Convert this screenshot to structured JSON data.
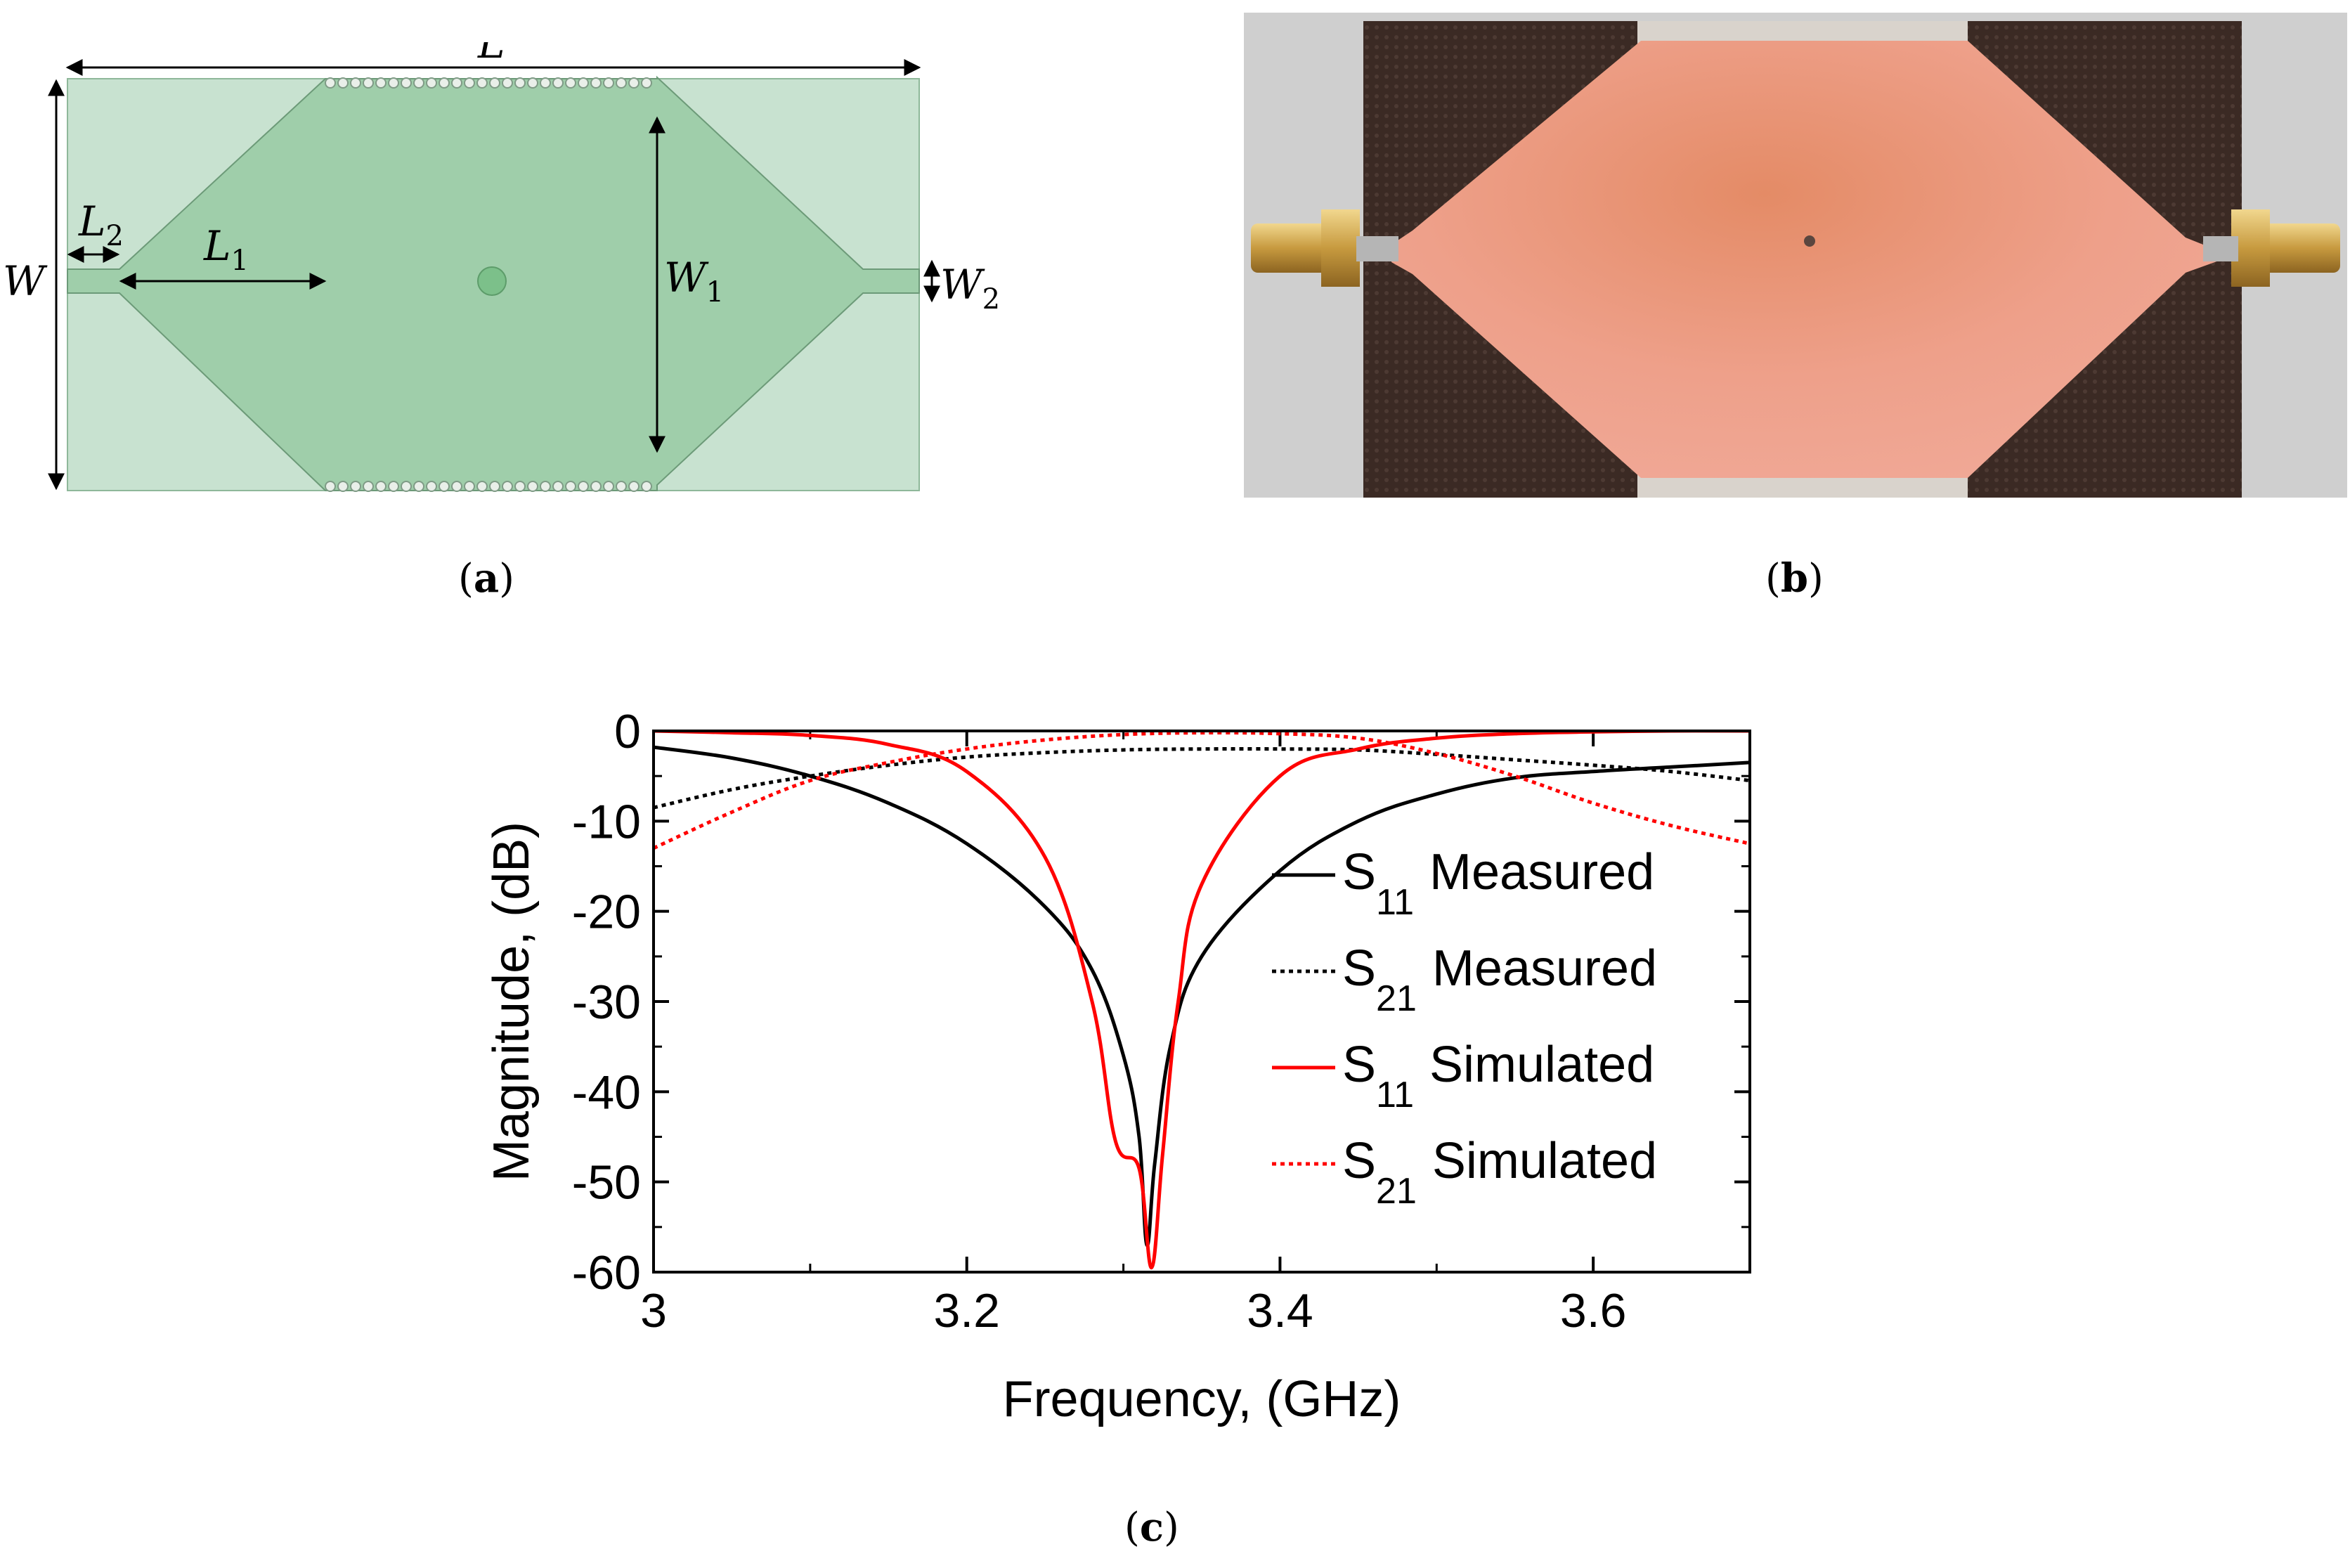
{
  "panels": {
    "a": {
      "label": "a",
      "dims": {
        "L": "L",
        "L1": "L",
        "L1_sub": "1",
        "L2": "L",
        "L2_sub": "2",
        "W": "W",
        "W1": "W",
        "W1_sub": "1",
        "W2": "W",
        "W2_sub": "2"
      }
    },
    "b": {
      "label": "b"
    },
    "c": {
      "label": "c"
    }
  },
  "colors": {
    "substrate": "#c8e2d0",
    "copper_pattern": "#9fceaa",
    "measured": "#000000",
    "simulated": "#ff0000",
    "board": "#3b2a24",
    "copper": "#ec9c83",
    "backdrop": "#cfcfcf"
  },
  "chart_data": {
    "type": "line",
    "xlabel": "Frequency,  (GHz)",
    "ylabel": "Magnitude, (dB)",
    "xlim": [
      3.0,
      3.7
    ],
    "ylim": [
      -60,
      0
    ],
    "xticks": [
      3,
      3.2,
      3.4,
      3.6
    ],
    "xtick_labels": [
      "3",
      "3.2",
      "3.4",
      "3.6"
    ],
    "yticks": [
      0,
      -10,
      -20,
      -30,
      -40,
      -50,
      -60
    ],
    "ytick_labels": [
      "0",
      "-10",
      "-20",
      "-30",
      "-40",
      "-50",
      "-60"
    ],
    "grid": false,
    "legend_position": "right",
    "series": [
      {
        "name": "S11 Measured",
        "param": "S",
        "sub": "11",
        "label": "Measured",
        "style": "solid",
        "color": "#000000",
        "x": [
          3.0,
          3.05,
          3.1,
          3.15,
          3.2,
          3.25,
          3.28,
          3.3,
          3.31,
          3.315,
          3.32,
          3.33,
          3.35,
          3.4,
          3.45,
          3.5,
          3.55,
          3.6,
          3.65,
          3.7
        ],
        "y": [
          -1.8,
          -3.0,
          -5.0,
          -8.0,
          -12.5,
          -19.5,
          -26.5,
          -36.0,
          -45.0,
          -57.0,
          -48.0,
          -35.0,
          -25.0,
          -15.5,
          -10.0,
          -7.0,
          -5.2,
          -4.5,
          -4.0,
          -3.5
        ]
      },
      {
        "name": "S21 Measured",
        "param": "S",
        "sub": "21",
        "label": "Measured",
        "style": "dotted",
        "color": "#000000",
        "x": [
          3.0,
          3.05,
          3.1,
          3.15,
          3.2,
          3.25,
          3.3,
          3.35,
          3.4,
          3.45,
          3.5,
          3.55,
          3.6,
          3.65,
          3.7
        ],
        "y": [
          -8.5,
          -6.5,
          -5.0,
          -3.8,
          -2.9,
          -2.4,
          -2.1,
          -2.0,
          -2.0,
          -2.1,
          -2.6,
          -3.2,
          -3.8,
          -4.5,
          -5.5
        ]
      },
      {
        "name": "S11 Simulated",
        "param": "S",
        "sub": "11",
        "label": "Simulated",
        "style": "solid",
        "color": "#ff0000",
        "x": [
          3.0,
          3.05,
          3.1,
          3.15,
          3.2,
          3.25,
          3.28,
          3.295,
          3.31,
          3.318,
          3.325,
          3.335,
          3.35,
          3.4,
          3.45,
          3.5,
          3.55,
          3.6,
          3.65,
          3.7
        ],
        "y": [
          0.0,
          -0.2,
          -0.5,
          -1.5,
          -4.5,
          -14.0,
          -30.0,
          -45.5,
          -48.5,
          -59.5,
          -47.0,
          -30.0,
          -17.0,
          -5.0,
          -2.0,
          -0.8,
          -0.3,
          -0.1,
          0.0,
          0.0
        ]
      },
      {
        "name": "S21 Simulated",
        "param": "S",
        "sub": "21",
        "label": "Simulated",
        "style": "dotted",
        "color": "#ff0000",
        "x": [
          3.0,
          3.05,
          3.1,
          3.15,
          3.2,
          3.25,
          3.3,
          3.35,
          3.4,
          3.45,
          3.5,
          3.55,
          3.6,
          3.65,
          3.7
        ],
        "y": [
          -13.0,
          -9.0,
          -5.5,
          -3.5,
          -2.0,
          -1.0,
          -0.4,
          -0.2,
          -0.3,
          -0.8,
          -2.5,
          -5.0,
          -8.0,
          -10.5,
          -12.5
        ]
      }
    ]
  }
}
